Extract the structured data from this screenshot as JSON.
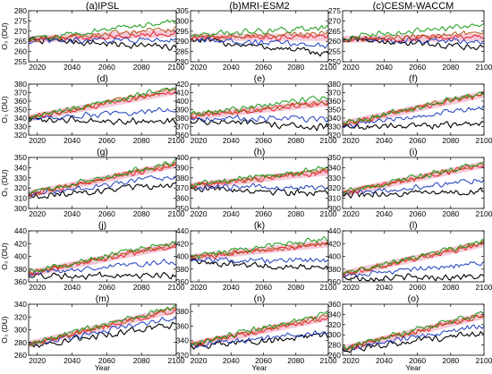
{
  "figure": {
    "xlabel": "Year",
    "ylabel": "O₃ (DU)",
    "x_tick_labels": [
      "2020",
      "2040",
      "2060",
      "2080",
      "2100"
    ],
    "column_titles": [
      "(a)IPSL",
      "(b)MRI-ESM2",
      "(c)CESM-WACCM"
    ],
    "series_colors": {
      "black": "#000000",
      "blue": "#1f3fbf",
      "red": "#e8202a",
      "brown": "#b05a1a",
      "green": "#1a9a1a",
      "pink_band": "#f6c9d8"
    }
  },
  "chart_data": [
    {
      "type": "line",
      "label": "(a)IPSL",
      "ylim": [
        255,
        280
      ],
      "yticks": [
        255,
        260,
        265,
        270,
        275,
        280
      ],
      "xlim": [
        2015,
        2100
      ],
      "trends": {
        "black": [
          266,
          262
        ],
        "blue": [
          265,
          266
        ],
        "red": [
          266,
          269
        ],
        "brown": [
          266,
          271
        ],
        "green": [
          266,
          275
        ]
      }
    },
    {
      "type": "line",
      "label": "(b)MRI-ESM2",
      "ylim": [
        280,
        305
      ],
      "yticks": [
        280,
        285,
        290,
        295,
        300,
        305
      ],
      "xlim": [
        2015,
        2100
      ],
      "trends": {
        "black": [
          291,
          284
        ],
        "blue": [
          291,
          288
        ],
        "red": [
          292,
          292
        ],
        "brown": [
          292,
          294
        ],
        "green": [
          293,
          297
        ]
      }
    },
    {
      "type": "line",
      "label": "(c)CESM-WACCM",
      "ylim": [
        250,
        275
      ],
      "yticks": [
        250,
        255,
        260,
        265,
        270,
        275
      ],
      "xlim": [
        2015,
        2100
      ],
      "trends": {
        "black": [
          261,
          257
        ],
        "blue": [
          261,
          260
        ],
        "red": [
          261,
          262
        ],
        "brown": [
          261,
          264
        ],
        "green": [
          262,
          268
        ]
      }
    },
    {
      "type": "line",
      "label": "(d)",
      "ylim": [
        320,
        380
      ],
      "yticks": [
        320,
        330,
        340,
        350,
        360,
        370,
        380
      ],
      "xlim": [
        2015,
        2100
      ],
      "trends": {
        "black": [
          338,
          336
        ],
        "blue": [
          339,
          350
        ],
        "red": [
          340,
          372
        ],
        "brown": [
          340,
          374
        ],
        "green": [
          341,
          376
        ]
      }
    },
    {
      "type": "line",
      "label": "(e)",
      "ylim": [
        360,
        420
      ],
      "yticks": [
        360,
        370,
        380,
        390,
        400,
        410,
        420
      ],
      "xlim": [
        2015,
        2100
      ],
      "trends": {
        "black": [
          377,
          369
        ],
        "blue": [
          380,
          379
        ],
        "red": [
          382,
          398
        ],
        "brown": [
          383,
          399
        ],
        "green": [
          385,
          404
        ]
      }
    },
    {
      "type": "line",
      "label": "(f)",
      "ylim": [
        320,
        380
      ],
      "yticks": [
        320,
        330,
        340,
        350,
        360,
        370,
        380
      ],
      "xlim": [
        2015,
        2100
      ],
      "trends": {
        "black": [
          329,
          333
        ],
        "blue": [
          331,
          352
        ],
        "red": [
          333,
          368
        ],
        "brown": [
          333,
          369
        ],
        "green": [
          334,
          370
        ]
      }
    },
    {
      "type": "line",
      "label": "(g)",
      "ylim": [
        300,
        350
      ],
      "yticks": [
        300,
        310,
        320,
        330,
        340,
        350
      ],
      "xlim": [
        2015,
        2100
      ],
      "trends": {
        "black": [
          312,
          323
        ],
        "blue": [
          313,
          332
        ],
        "red": [
          314,
          343
        ],
        "brown": [
          314,
          344
        ],
        "green": [
          315,
          346
        ]
      }
    },
    {
      "type": "line",
      "label": "(h)",
      "ylim": [
        350,
        400
      ],
      "yticks": [
        350,
        360,
        370,
        380,
        390,
        400
      ],
      "xlim": [
        2015,
        2100
      ],
      "trends": {
        "black": [
          370,
          365
        ],
        "blue": [
          371,
          371
        ],
        "red": [
          372,
          386
        ],
        "brown": [
          372,
          388
        ],
        "green": [
          373,
          390
        ]
      }
    },
    {
      "type": "line",
      "label": "(i)",
      "ylim": [
        300,
        350
      ],
      "yticks": [
        300,
        310,
        320,
        330,
        340,
        350
      ],
      "xlim": [
        2015,
        2100
      ],
      "trends": {
        "black": [
          313,
          317
        ],
        "blue": [
          314,
          328
        ],
        "red": [
          315,
          343
        ],
        "brown": [
          315,
          344
        ],
        "green": [
          316,
          345
        ]
      }
    },
    {
      "type": "line",
      "label": "(j)",
      "ylim": [
        360,
        440
      ],
      "yticks": [
        360,
        380,
        400,
        420,
        440
      ],
      "xlim": [
        2015,
        2100
      ],
      "trends": {
        "black": [
          370,
          370
        ],
        "blue": [
          372,
          392
        ],
        "red": [
          373,
          418
        ],
        "brown": [
          374,
          420
        ],
        "green": [
          375,
          423
        ]
      }
    },
    {
      "type": "line",
      "label": "(k)",
      "ylim": [
        360,
        440
      ],
      "yticks": [
        360,
        380,
        400,
        420,
        440
      ],
      "xlim": [
        2015,
        2100
      ],
      "trends": {
        "black": [
          392,
          380
        ],
        "blue": [
          395,
          392
        ],
        "red": [
          398,
          420
        ],
        "brown": [
          398,
          422
        ],
        "green": [
          400,
          428
        ]
      }
    },
    {
      "type": "line",
      "label": "(l)",
      "ylim": [
        360,
        440
      ],
      "yticks": [
        360,
        380,
        400,
        420,
        440
      ],
      "xlim": [
        2015,
        2100
      ],
      "trends": {
        "black": [
          366,
          368
        ],
        "blue": [
          369,
          390
        ],
        "red": [
          372,
          420
        ],
        "brown": [
          372,
          422
        ],
        "green": [
          373,
          424
        ]
      }
    },
    {
      "type": "line",
      "label": "(m)",
      "ylim": [
        260,
        340
      ],
      "yticks": [
        260,
        280,
        300,
        320,
        340
      ],
      "xlim": [
        2015,
        2100
      ],
      "trends": {
        "black": [
          275,
          308
        ],
        "blue": [
          276,
          320
        ],
        "red": [
          277,
          332
        ],
        "brown": [
          277,
          334
        ],
        "green": [
          278,
          336
        ]
      }
    },
    {
      "type": "line",
      "label": "(n)",
      "ylim": [
        320,
        390
      ],
      "yticks": [
        320,
        340,
        360,
        380
      ],
      "xlim": [
        2015,
        2100
      ],
      "trends": {
        "black": [
          332,
          347
        ],
        "blue": [
          333,
          352
        ],
        "red": [
          334,
          372
        ],
        "brown": [
          334,
          374
        ],
        "green": [
          335,
          378
        ]
      }
    },
    {
      "type": "line",
      "label": "(o)",
      "ylim": [
        260,
        360
      ],
      "yticks": [
        260,
        280,
        300,
        320,
        340,
        360
      ],
      "xlim": [
        2015,
        2100
      ],
      "trends": {
        "black": [
          270,
          305
        ],
        "blue": [
          271,
          318
        ],
        "red": [
          272,
          338
        ],
        "brown": [
          272,
          340
        ],
        "green": [
          273,
          345
        ]
      }
    }
  ]
}
